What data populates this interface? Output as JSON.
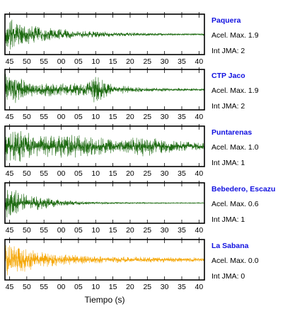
{
  "chart_data": {
    "type": "line",
    "xlabel": "Tiempo (s)",
    "x_tick_labels": [
      "45",
      "50",
      "55",
      "00",
      "05",
      "10",
      "15",
      "20",
      "25",
      "30",
      "35",
      "40"
    ],
    "accel_prefix": "Acel. Max.",
    "jma_prefix": "Int JMA:",
    "panels": [
      {
        "station": "Paquera",
        "accel_max": "1.9",
        "int_jma": "2",
        "color": "#1e6b12",
        "envelope": [
          [
            0,
            1.0
          ],
          [
            0.02,
            0.95
          ],
          [
            0.08,
            0.6
          ],
          [
            0.2,
            0.38
          ],
          [
            0.35,
            0.22
          ],
          [
            0.55,
            0.12
          ],
          [
            0.75,
            0.08
          ],
          [
            1,
            0.05
          ]
        ]
      },
      {
        "station": "CTP Jaco",
        "accel_max": "1.9",
        "int_jma": "2",
        "color": "#1e6b12",
        "envelope": [
          [
            0,
            0.85
          ],
          [
            0.05,
            0.8
          ],
          [
            0.15,
            0.4
          ],
          [
            0.3,
            0.33
          ],
          [
            0.42,
            0.42
          ],
          [
            0.46,
            0.85
          ],
          [
            0.5,
            0.45
          ],
          [
            0.55,
            0.25
          ],
          [
            0.7,
            0.12
          ],
          [
            1,
            0.06
          ]
        ]
      },
      {
        "station": "Puntarenas",
        "accel_max": "1.0",
        "int_jma": "1",
        "color": "#1e6b12",
        "envelope": [
          [
            0,
            0.75
          ],
          [
            0.08,
            0.9
          ],
          [
            0.15,
            0.55
          ],
          [
            0.3,
            0.65
          ],
          [
            0.45,
            0.5
          ],
          [
            0.58,
            0.35
          ],
          [
            0.7,
            0.55
          ],
          [
            0.8,
            0.35
          ],
          [
            1,
            0.18
          ]
        ]
      },
      {
        "station": "Bebedero, Escazu",
        "accel_max": "0.6",
        "int_jma": "1",
        "color": "#1e6b12",
        "envelope": [
          [
            0,
            0.95
          ],
          [
            0.05,
            0.75
          ],
          [
            0.12,
            0.45
          ],
          [
            0.2,
            0.3
          ],
          [
            0.3,
            0.15
          ],
          [
            0.45,
            0.08
          ],
          [
            0.6,
            0.04
          ],
          [
            1,
            0.02
          ]
        ]
      },
      {
        "station": "La Sabana",
        "accel_max": "0.0",
        "int_jma": "0",
        "color": "#f5a80a",
        "envelope": [
          [
            0,
            0.9
          ],
          [
            0.05,
            0.85
          ],
          [
            0.15,
            0.5
          ],
          [
            0.25,
            0.35
          ],
          [
            0.4,
            0.22
          ],
          [
            0.6,
            0.17
          ],
          [
            0.8,
            0.14
          ],
          [
            1,
            0.12
          ]
        ]
      }
    ]
  }
}
